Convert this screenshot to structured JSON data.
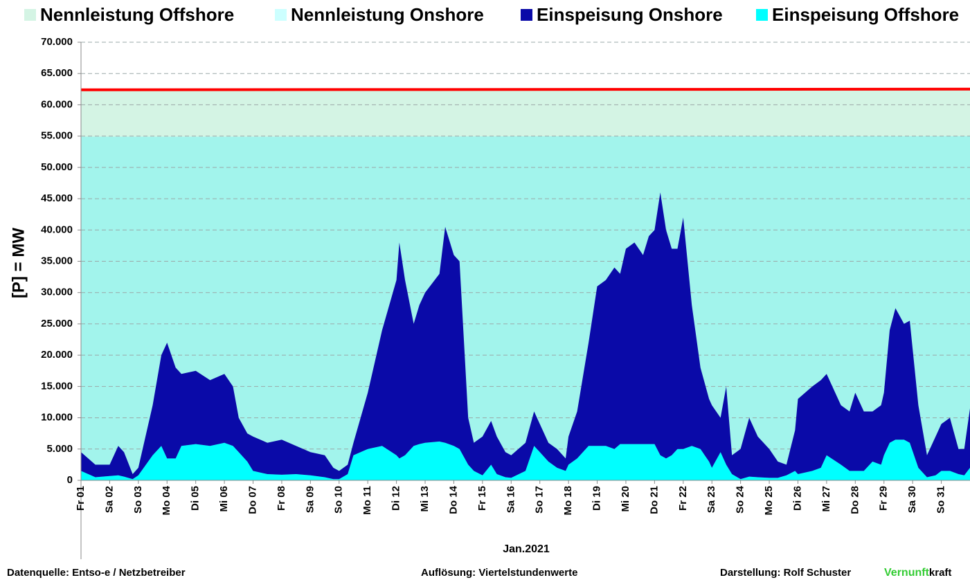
{
  "chart_data": {
    "type": "stacked-area",
    "y_label": "[P] = MW",
    "x_label": "Jan.2021",
    "x": [
      1,
      1.5,
      2,
      2.3,
      2.5,
      2.8,
      3,
      3.5,
      3.8,
      4,
      4.3,
      4.5,
      5,
      5.5,
      6,
      6.3,
      6.5,
      6.8,
      7,
      7.5,
      8,
      8.5,
      9,
      9.5,
      9.8,
      10,
      10.3,
      10.5,
      11,
      11.5,
      12,
      12.1,
      12.3,
      12.6,
      12.8,
      13,
      13.5,
      13.7,
      14,
      14.2,
      14.5,
      14.7,
      15,
      15.3,
      15.5,
      15.8,
      16,
      16.5,
      16.8,
      17,
      17.3,
      17.6,
      17.9,
      18,
      18.3,
      18.7,
      19,
      19.3,
      19.6,
      19.8,
      20,
      20.3,
      20.6,
      20.8,
      21,
      21.2,
      21.4,
      21.6,
      21.8,
      22,
      22.3,
      22.6,
      22.9,
      23,
      23.3,
      23.5,
      23.7,
      24,
      24.3,
      24.6,
      25,
      25.3,
      25.6,
      25.9,
      26,
      26.5,
      26.8,
      27,
      27.5,
      27.8,
      28,
      28.3,
      28.6,
      28.9,
      29,
      29.2,
      29.4,
      29.7,
      29.9,
      30.2,
      30.5,
      30.8,
      31,
      31.3,
      31.6,
      31.8,
      32
    ],
    "series": [
      {
        "name": "Nennleistung Offshore",
        "color": "#d4f4e4",
        "legend_color": "#d4f4e4",
        "line_color": "#ff0000",
        "x": [
          1,
          32
        ],
        "values": [
          7500,
          7500
        ]
      },
      {
        "name": "Nennleistung Onshore",
        "color": "#a2f4ec",
        "legend_color": "#ccffff",
        "x": [
          1,
          32
        ],
        "values": [
          54900,
          55000
        ]
      },
      {
        "name": "Einspeisung Onshore",
        "color": "#0a0aa8",
        "legend_color": "#0a0aa8",
        "values": [
          3000,
          2000,
          1800,
          4700,
          3900,
          800,
          1200,
          8000,
          14500,
          18500,
          14500,
          11500,
          11700,
          10500,
          11000,
          9500,
          5500,
          4500,
          5500,
          5000,
          5600,
          4500,
          3700,
          3500,
          1800,
          1300,
          1500,
          2000,
          9000,
          18500,
          28000,
          34500,
          28000,
          19500,
          22200,
          24000,
          26800,
          34500,
          30500,
          30000,
          7500,
          4500,
          6200,
          7000,
          6000,
          4000,
          3600,
          4500,
          5500,
          4500,
          3000,
          3000,
          2000,
          4500,
          7500,
          16500,
          25500,
          26500,
          29000,
          27200,
          31200,
          32200,
          30200,
          33200,
          34200,
          42000,
          36500,
          33000,
          32000,
          37000,
          22500,
          13000,
          10000,
          10000,
          5500,
          12500,
          3000,
          4800,
          9400,
          6500,
          4600,
          2600,
          1700,
          6500,
          12000,
          13500,
          14000,
          13000,
          9500,
          9500,
          12500,
          9500,
          8000,
          9500,
          10000,
          18000,
          21000,
          18500,
          19500,
          10000,
          3500,
          6200,
          7500,
          8500,
          4000,
          4200,
          9500
        ]
      },
      {
        "name": "Einspeisung Offshore",
        "color": "#00ffff",
        "legend_color": "#00ffff",
        "values": [
          1500,
          500,
          700,
          800,
          600,
          200,
          800,
          4000,
          5500,
          3500,
          3500,
          5500,
          5800,
          5500,
          6000,
          5500,
          4500,
          3000,
          1500,
          1000,
          900,
          1000,
          800,
          500,
          200,
          200,
          1000,
          4000,
          5000,
          5500,
          4000,
          3500,
          4000,
          5500,
          5800,
          6000,
          6200,
          6000,
          5500,
          5000,
          2500,
          1500,
          800,
          2500,
          1000,
          500,
          400,
          1500,
          5500,
          4500,
          3000,
          2000,
          1500,
          2500,
          3500,
          5500,
          5500,
          5500,
          5000,
          5800,
          5800,
          5800,
          5800,
          5800,
          5800,
          4000,
          3500,
          4000,
          5000,
          5000,
          5500,
          5000,
          3000,
          2000,
          4500,
          2500,
          1000,
          200,
          600,
          500,
          400,
          400,
          800,
          1500,
          1000,
          1500,
          2000,
          4000,
          2500,
          1500,
          1500,
          1500,
          3000,
          2500,
          4000,
          6000,
          6500,
          6500,
          6000,
          2000,
          500,
          800,
          1500,
          1500,
          1000,
          800,
          2000
        ]
      }
    ],
    "xlim": [
      1,
      32
    ],
    "xticks": [
      {
        "value": 1,
        "label": "Fr 01"
      },
      {
        "value": 2,
        "label": "Sa 02"
      },
      {
        "value": 3,
        "label": "So 03"
      },
      {
        "value": 4,
        "label": "Mo 04"
      },
      {
        "value": 5,
        "label": "Di 05"
      },
      {
        "value": 6,
        "label": "Mi 06"
      },
      {
        "value": 7,
        "label": "Do 07"
      },
      {
        "value": 8,
        "label": "Fr 08"
      },
      {
        "value": 9,
        "label": "Sa 09"
      },
      {
        "value": 10,
        "label": "So 10"
      },
      {
        "value": 11,
        "label": "Mo 11"
      },
      {
        "value": 12,
        "label": "Di 12"
      },
      {
        "value": 13,
        "label": "Mi 13"
      },
      {
        "value": 14,
        "label": "Do 14"
      },
      {
        "value": 15,
        "label": "Fr 15"
      },
      {
        "value": 16,
        "label": "Sa 16"
      },
      {
        "value": 17,
        "label": "So 17"
      },
      {
        "value": 18,
        "label": "Mo 18"
      },
      {
        "value": 19,
        "label": "Di 19"
      },
      {
        "value": 20,
        "label": "Mi 20"
      },
      {
        "value": 21,
        "label": "Do 21"
      },
      {
        "value": 22,
        "label": "Fr 22"
      },
      {
        "value": 23,
        "label": "Sa 23"
      },
      {
        "value": 24,
        "label": "So 24"
      },
      {
        "value": 25,
        "label": "Mo 25"
      },
      {
        "value": 26,
        "label": "Di 26"
      },
      {
        "value": 27,
        "label": "Mi 27"
      },
      {
        "value": 28,
        "label": "Do 28"
      },
      {
        "value": 29,
        "label": "Fr 29"
      },
      {
        "value": 30,
        "label": "Sa 30"
      },
      {
        "value": 31,
        "label": "So 31"
      }
    ],
    "ylim": [
      0,
      70000
    ],
    "yticks": [
      0,
      {
        "value": 5000,
        "label": "5.000"
      },
      {
        "value": 10000,
        "label": "10.000"
      },
      {
        "value": 15000,
        "label": "15.000"
      },
      {
        "value": 20000,
        "label": "20.000"
      },
      {
        "value": 25000,
        "label": "25.000"
      },
      {
        "value": 30000,
        "label": "30.000"
      },
      {
        "value": 35000,
        "label": "35.000"
      },
      {
        "value": 40000,
        "label": "40.000"
      },
      {
        "value": 45000,
        "label": "45.000"
      },
      {
        "value": 50000,
        "label": "50.000"
      },
      {
        "value": 55000,
        "label": "55.000"
      },
      {
        "value": 60000,
        "label": "60.000"
      },
      {
        "value": 65000,
        "label": "65.000"
      },
      {
        "value": 70000,
        "label": "70.000"
      }
    ],
    "grid": true,
    "notes": {
      "source": "Datenquelle:  Entso-e  / Netzbetreiber",
      "resolution": "Auflösung: Viertelstundenwerte",
      "author": "Darstellung:  Rolf Schuster",
      "brand_1": "Vernunft",
      "brand_2": "kraft"
    }
  }
}
